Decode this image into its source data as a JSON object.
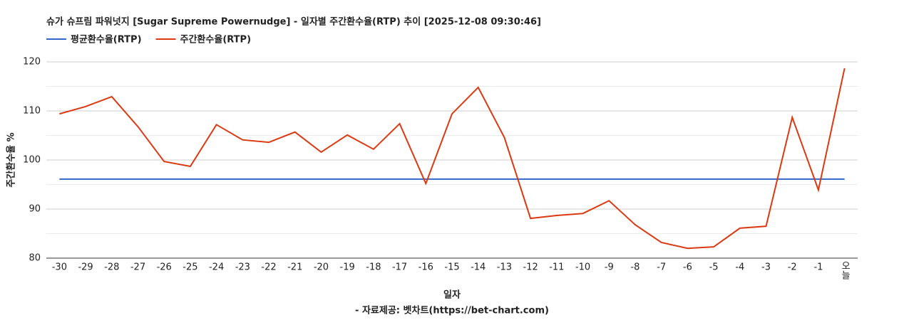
{
  "chart_data": {
    "type": "line",
    "title": "슈가 슈프림 파워넛지 [Sugar Supreme Powernudge] - 일자별 주간환수율(RTP) 추이 [2025-12-08 09:30:46]",
    "x_label": "일자",
    "y_label": "주간환수율 %",
    "source": "- 자료제공: 벳차트(https://bet-chart.com)",
    "categories": [
      "-30",
      "-29",
      "-28",
      "-27",
      "-26",
      "-25",
      "-24",
      "-23",
      "-22",
      "-21",
      "-20",
      "-19",
      "-18",
      "-17",
      "-16",
      "-15",
      "-14",
      "-13",
      "-12",
      "-11",
      "-10",
      "-9",
      "-8",
      "-7",
      "-6",
      "-5",
      "-4",
      "-3",
      "-2",
      "-1",
      "오늘"
    ],
    "series": [
      {
        "name": "평균환수율(RTP)",
        "color": "#3366cc",
        "values": [
          96.1,
          96.1,
          96.1,
          96.1,
          96.1,
          96.1,
          96.1,
          96.1,
          96.1,
          96.1,
          96.1,
          96.1,
          96.1,
          96.1,
          96.1,
          96.1,
          96.1,
          96.1,
          96.1,
          96.1,
          96.1,
          96.1,
          96.1,
          96.1,
          96.1,
          96.1,
          96.1,
          96.1,
          96.1,
          96.1,
          96.1
        ]
      },
      {
        "name": "주간환수율(RTP)",
        "color": "#dc3912",
        "values": [
          109.4,
          110.9,
          112.9,
          106.8,
          99.7,
          98.7,
          107.2,
          104.1,
          103.6,
          105.7,
          101.6,
          105.1,
          102.2,
          107.4,
          95.2,
          109.4,
          114.8,
          104.6,
          88.1,
          88.7,
          89.1,
          91.7,
          86.8,
          83.2,
          82.0,
          82.3,
          86.1,
          86.5,
          108.7,
          93.9,
          118.7
        ]
      }
    ],
    "ylim": [
      80,
      120
    ],
    "yticks": [
      80,
      90,
      100,
      110,
      120
    ],
    "minor_yticks": [
      85,
      95,
      105,
      115
    ],
    "grid": true,
    "legend": "top-left"
  }
}
